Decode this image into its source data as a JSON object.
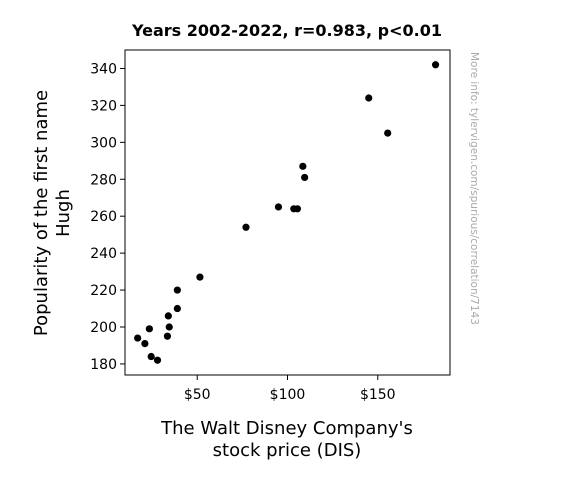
{
  "chart_data": {
    "type": "scatter",
    "title": "Years 2002-2022, r=0.983, p<0.01",
    "xlabel": [
      "The Walt Disney Company's",
      "stock price (DIS)"
    ],
    "ylabel": [
      "Popularity of the first name",
      "Hugh"
    ],
    "watermark": "More info: tylervigen.com/spurious/correlation/7143",
    "xlim": [
      10,
      190
    ],
    "ylim": [
      174,
      350
    ],
    "x_ticks": [
      {
        "value": 50,
        "label": "$50"
      },
      {
        "value": 100,
        "label": "$100"
      },
      {
        "value": 150,
        "label": "$150"
      }
    ],
    "y_ticks": [
      {
        "value": 180,
        "label": "180"
      },
      {
        "value": 200,
        "label": "200"
      },
      {
        "value": 220,
        "label": "220"
      },
      {
        "value": 240,
        "label": "240"
      },
      {
        "value": 260,
        "label": "260"
      },
      {
        "value": 280,
        "label": "280"
      },
      {
        "value": 300,
        "label": "300"
      },
      {
        "value": 320,
        "label": "320"
      },
      {
        "value": 340,
        "label": "340"
      }
    ],
    "point_color": "#000000",
    "points": [
      {
        "x": 17.0,
        "y": 194
      },
      {
        "x": 21.0,
        "y": 191
      },
      {
        "x": 23.5,
        "y": 199
      },
      {
        "x": 24.5,
        "y": 184
      },
      {
        "x": 28.0,
        "y": 182
      },
      {
        "x": 33.5,
        "y": 195
      },
      {
        "x": 34.0,
        "y": 206
      },
      {
        "x": 34.5,
        "y": 200
      },
      {
        "x": 39.0,
        "y": 210
      },
      {
        "x": 39.0,
        "y": 220
      },
      {
        "x": 51.5,
        "y": 227
      },
      {
        "x": 77.0,
        "y": 254
      },
      {
        "x": 95.0,
        "y": 265
      },
      {
        "x": 103.5,
        "y": 264
      },
      {
        "x": 105.5,
        "y": 264
      },
      {
        "x": 108.5,
        "y": 287
      },
      {
        "x": 109.5,
        "y": 281
      },
      {
        "x": 145.0,
        "y": 324
      },
      {
        "x": 155.5,
        "y": 305
      },
      {
        "x": 182.0,
        "y": 342
      }
    ]
  }
}
